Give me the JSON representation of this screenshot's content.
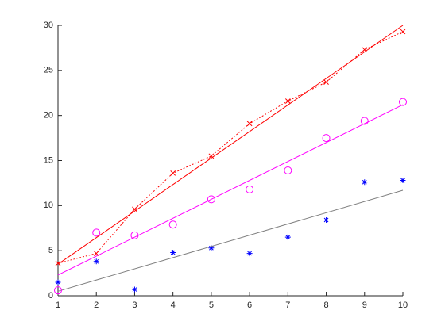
{
  "chart_data": {
    "type": "scatter",
    "xlim": [
      1,
      10
    ],
    "xticks": [
      1,
      2,
      3,
      4,
      5,
      6,
      7,
      8,
      9,
      10
    ],
    "ylim": [
      0,
      30
    ],
    "yticks": [
      0,
      5,
      10,
      15,
      20,
      25,
      30
    ],
    "series": [
      {
        "color": "#0000ff",
        "marker": "asterisk",
        "line": "none",
        "x": [
          1,
          2,
          3,
          4,
          5,
          6,
          7,
          8,
          9,
          10
        ],
        "values": [
          1.5,
          3.8,
          0.7,
          4.8,
          5.3,
          4.7,
          6.5,
          8.4,
          12.6,
          12.8
        ]
      },
      {
        "color": "#808080",
        "marker": "none",
        "line": "solid",
        "x": [
          1,
          10
        ],
        "values": [
          0.5,
          11.7
        ]
      },
      {
        "color": "#ff00ff",
        "marker": "circle",
        "line": "none",
        "x": [
          1,
          2,
          3,
          4,
          5,
          6,
          7,
          8,
          9,
          10
        ],
        "values": [
          0.6,
          7.0,
          6.7,
          7.9,
          10.7,
          11.8,
          13.9,
          17.5,
          19.4,
          21.5
        ]
      },
      {
        "color": "#ff00ff",
        "marker": "none",
        "line": "solid",
        "x": [
          1,
          10
        ],
        "values": [
          2.3,
          21.2
        ]
      },
      {
        "color": "#ff0000",
        "marker": "x",
        "line": "dotted",
        "x": [
          1,
          2,
          3,
          4,
          5,
          6,
          7,
          8,
          9,
          10
        ],
        "values": [
          3.6,
          4.7,
          9.6,
          13.6,
          15.5,
          19.1,
          21.6,
          23.7,
          27.3,
          29.3
        ]
      },
      {
        "color": "#ff0000",
        "marker": "none",
        "line": "solid",
        "x": [
          1,
          10
        ],
        "values": [
          3.5,
          30
        ]
      }
    ]
  }
}
